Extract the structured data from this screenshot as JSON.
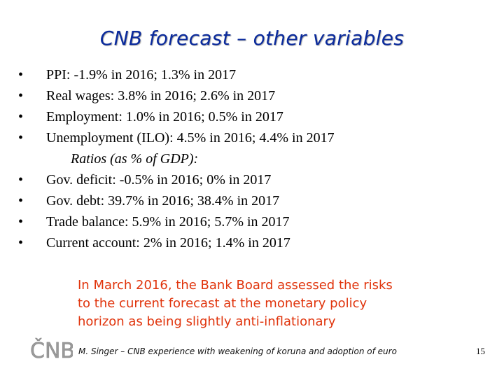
{
  "slide": {
    "title": "CNB forecast – other variables",
    "bullet_char": "•",
    "bullets": [
      "PPI: -1.9% in 2016; 1.3% in 2017",
      "Real wages: 3.8% in 2016; 2.6% in 2017",
      "Employment: 1.0% in 2016; 0.5% in 2017",
      "Unemployment (ILO): 4.5% in 2016; 4.4% in 2017"
    ],
    "ratios_heading": "Ratios (as % of GDP):",
    "ratio_bullets": [
      "Gov. deficit: -0.5% in 2016; 0% in 2017",
      "Gov. debt: 39.7% in 2016; 38.4% in 2017",
      "Trade balance: 5.9% in 2016; 5.7% in 2017",
      "Current account: 2% in 2016; 1.4% in 2017"
    ],
    "note_lines": [
      "In March 2016, the Bank Board assessed the risks",
      "to the current forecast at the monetary policy",
      "horizon as being slightly anti-inflationary"
    ],
    "logo_text": "ČNB",
    "footer": "M. Singer – CNB experience with weakening of koruna and adoption of euro",
    "page_number": "15"
  },
  "colors": {
    "title": "#0a2a9c",
    "note": "#e0330b",
    "logo": "#9a9a9a"
  },
  "icons": {
    "logo": "cnb-logo"
  }
}
